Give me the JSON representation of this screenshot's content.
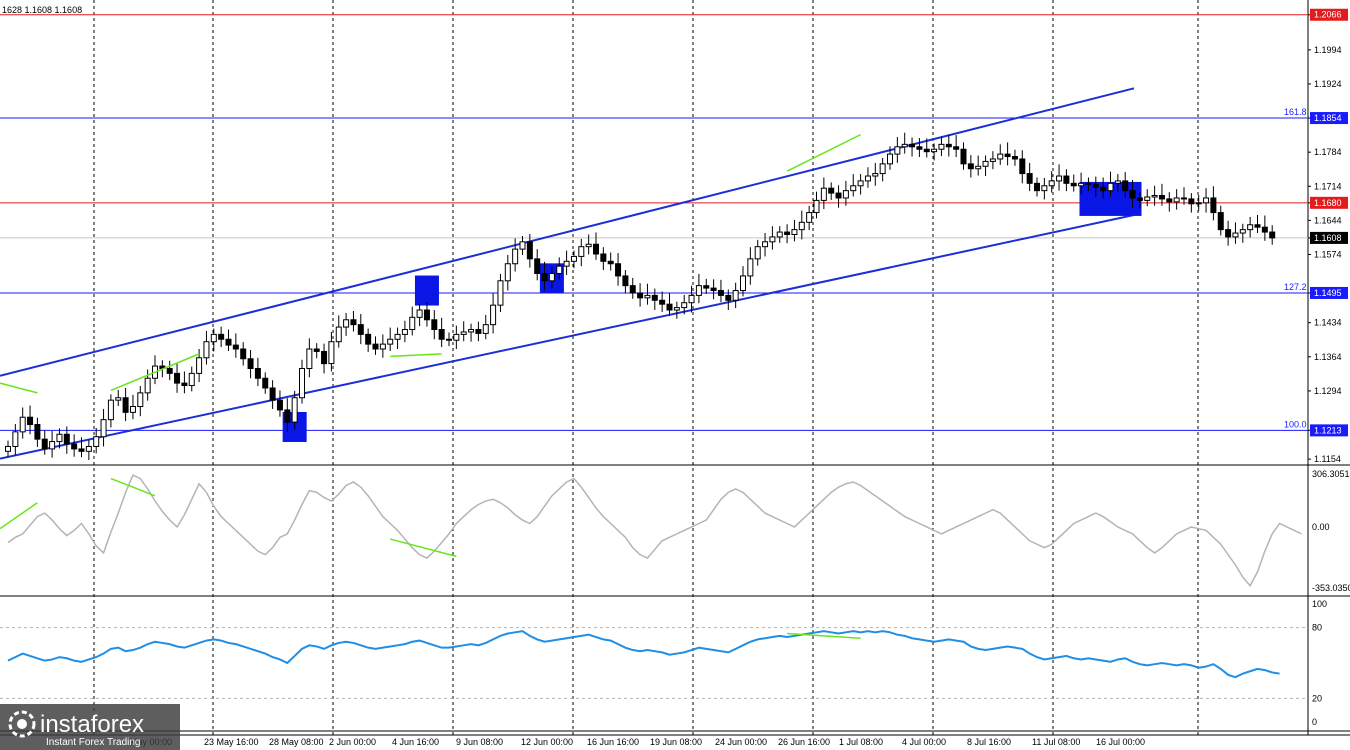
{
  "header": {
    "ohlc_text": "1628 1.1608 1.1608"
  },
  "colors": {
    "channel": "#1a2fd6",
    "zone": "#0a16e6",
    "red_level": "#e31b1b",
    "blue_level": "#1a1aff",
    "divergence": "#66e61a",
    "cci": "#b4b4b4",
    "rsi": "#1e8ee6",
    "grid": "#000000",
    "current_price": "#000000"
  },
  "chart_data": [
    {
      "type": "candlestick",
      "symbol_note": "EUR/USD 4H",
      "price_axis_ticks": [
        "1.2066",
        "1.1994",
        "1.1924",
        "1.1854",
        "1.1784",
        "1.1714",
        "1.1680",
        "1.1644",
        "1.1608",
        "1.1574",
        "1.1495",
        "1.1434",
        "1.1364",
        "1.1294",
        "1.1213",
        "1.1154"
      ],
      "ylim": [
        1.1144,
        1.2086
      ],
      "x_ticks": [
        "23 May 16:00",
        "28 May 08:00",
        "2 Jun 00:00",
        "4 Jun 16:00",
        "9 Jun 08:00",
        "12 Jun 00:00",
        "16 Jun 16:00",
        "19 Jun 08:00",
        "24 Jun 00:00",
        "26 Jun 16:00",
        "1 Jul 08:00",
        "4 Jul 00:00",
        "8 Jul 16:00",
        "11 Jul 08:00",
        "16 Jul 00:00"
      ],
      "x_tick_partial": "May 00:00",
      "levels": [
        {
          "price": 1.2066,
          "label": "1.2066",
          "kind": "red",
          "fib": ""
        },
        {
          "price": 1.1854,
          "label": "1.1854",
          "kind": "blue",
          "fib": "161.8"
        },
        {
          "price": 1.168,
          "label": "1.1680",
          "kind": "red",
          "fib": ""
        },
        {
          "price": 1.1495,
          "label": "1.1495",
          "kind": "blue",
          "fib": "127.2"
        },
        {
          "price": 1.1213,
          "label": "1.1213",
          "kind": "blue",
          "fib": "100.0"
        }
      ],
      "current_price": {
        "value": 1.1608,
        "label": "1.1608"
      },
      "closes": [
        1.118,
        1.121,
        1.124,
        1.1225,
        1.1195,
        1.1175,
        1.119,
        1.1205,
        1.1185,
        1.1175,
        1.117,
        1.118,
        1.12,
        1.1235,
        1.1275,
        1.128,
        1.125,
        1.1262,
        1.129,
        1.132,
        1.1345,
        1.134,
        1.133,
        1.131,
        1.1305,
        1.133,
        1.1362,
        1.1395,
        1.141,
        1.14,
        1.1388,
        1.138,
        1.136,
        1.134,
        1.132,
        1.13,
        1.1275,
        1.1255,
        1.123,
        1.128,
        1.134,
        1.138,
        1.1375,
        1.135,
        1.1395,
        1.1425,
        1.144,
        1.143,
        1.141,
        1.139,
        1.138,
        1.139,
        1.14,
        1.141,
        1.142,
        1.1445,
        1.146,
        1.144,
        1.142,
        1.14,
        1.1398,
        1.141,
        1.1415,
        1.142,
        1.1412,
        1.143,
        1.147,
        1.152,
        1.1555,
        1.1585,
        1.16,
        1.1565,
        1.1535,
        1.152,
        1.1535,
        1.155,
        1.156,
        1.157,
        1.159,
        1.1595,
        1.1575,
        1.156,
        1.1555,
        1.153,
        1.151,
        1.1495,
        1.1485,
        1.149,
        1.148,
        1.1472,
        1.146,
        1.1465,
        1.1475,
        1.149,
        1.151,
        1.1505,
        1.15,
        1.149,
        1.148,
        1.15,
        1.153,
        1.1565,
        1.159,
        1.16,
        1.161,
        1.162,
        1.1615,
        1.1625,
        1.164,
        1.166,
        1.1685,
        1.171,
        1.17,
        1.169,
        1.1705,
        1.1715,
        1.1725,
        1.1735,
        1.174,
        1.176,
        1.178,
        1.1795,
        1.18,
        1.1795,
        1.179,
        1.1785,
        1.179,
        1.18,
        1.1795,
        1.179,
        1.176,
        1.175,
        1.1755,
        1.1765,
        1.177,
        1.178,
        1.1775,
        1.177,
        1.174,
        1.172,
        1.1705,
        1.1715,
        1.1725,
        1.1735,
        1.172,
        1.1715,
        1.172,
        1.1718,
        1.1712,
        1.1705,
        1.172,
        1.1725,
        1.1705,
        1.169,
        1.1685,
        1.1692,
        1.1695,
        1.1688,
        1.1682,
        1.169,
        1.1688,
        1.1678,
        1.168,
        1.169,
        1.166,
        1.1625,
        1.161,
        1.1618,
        1.1625,
        1.1635,
        1.163,
        1.162,
        1.1608
      ],
      "channel": {
        "upper": [
          {
            "x": "start",
            "y": 1.1325
          },
          {
            "x": "16 Jul 00:00",
            "y": 1.1915
          }
        ],
        "lower": [
          {
            "x": "start",
            "y": 1.1155
          },
          {
            "x": "16 Jul 00:00",
            "y": 1.1655
          }
        ]
      },
      "zones": [
        {
          "center_index": 39,
          "price": 1.122
        },
        {
          "center_index": 57,
          "price": 1.15
        },
        {
          "center_index": 74,
          "price": 1.1525
        },
        {
          "center_index": 150,
          "price": 1.1688
        }
      ],
      "divergence_lines": [
        {
          "from": [
            -2,
            1.131
          ],
          "to": [
            4,
            1.129
          ]
        },
        {
          "from": [
            14,
            1.1295
          ],
          "to": [
            26,
            1.137
          ]
        },
        {
          "from": [
            52,
            1.1365
          ],
          "to": [
            59,
            1.137
          ]
        },
        {
          "from": [
            106,
            1.1745
          ],
          "to": [
            116,
            1.182
          ]
        }
      ]
    },
    {
      "type": "line",
      "indicator": "CCI",
      "ticks": [
        "306.3051",
        "0.00",
        "-353.0350"
      ],
      "ylim": [
        -353.035,
        306.3051
      ],
      "values": [
        -90,
        -60,
        -40,
        10,
        60,
        80,
        40,
        -10,
        -50,
        -20,
        20,
        -40,
        -110,
        -150,
        -30,
        80,
        200,
        300,
        280,
        220,
        150,
        90,
        40,
        0,
        70,
        160,
        250,
        200,
        120,
        60,
        20,
        -20,
        -60,
        -100,
        -140,
        -160,
        -120,
        -60,
        -40,
        40,
        130,
        210,
        200,
        170,
        150,
        190,
        240,
        260,
        230,
        180,
        120,
        60,
        20,
        -20,
        -70,
        -120,
        -160,
        -180,
        -140,
        -90,
        -40,
        20,
        60,
        100,
        130,
        150,
        160,
        140,
        110,
        70,
        40,
        20,
        60,
        120,
        180,
        220,
        260,
        280,
        230,
        170,
        110,
        60,
        20,
        -20,
        -60,
        -120,
        -160,
        -180,
        -130,
        -80,
        -60,
        -40,
        -20,
        0,
        20,
        40,
        100,
        160,
        200,
        220,
        200,
        160,
        120,
        80,
        60,
        40,
        20,
        0,
        40,
        80,
        120,
        160,
        200,
        230,
        250,
        260,
        240,
        210,
        180,
        150,
        120,
        90,
        60,
        40,
        20,
        0,
        -20,
        -40,
        -20,
        0,
        20,
        40,
        60,
        80,
        100,
        80,
        40,
        0,
        -40,
        -80,
        -100,
        -120,
        -100,
        -60,
        -20,
        20,
        40,
        60,
        80,
        60,
        30,
        0,
        -20,
        -40,
        -80,
        -120,
        -150,
        -120,
        -80,
        -40,
        -20,
        0,
        -10,
        -20,
        -60,
        -100,
        -160,
        -220,
        -290,
        -340,
        -260,
        -140,
        -40,
        20,
        0,
        -20,
        -40
      ],
      "divergence_lines": [
        {
          "from": [
            -2,
            -10
          ],
          "to": [
            4,
            140
          ]
        },
        {
          "from": [
            14,
            280
          ],
          "to": [
            20,
            180
          ]
        },
        {
          "from": [
            52,
            -70
          ],
          "to": [
            61,
            -170
          ]
        }
      ]
    },
    {
      "type": "line",
      "indicator": "RSI",
      "ticks": [
        "100",
        "80",
        "20",
        "0"
      ],
      "ylim": [
        0,
        100
      ],
      "levels": [
        80,
        20
      ],
      "values": [
        52,
        55,
        58,
        56,
        54,
        52,
        53,
        55,
        54,
        52,
        51,
        53,
        55,
        58,
        62,
        63,
        60,
        61,
        63,
        66,
        68,
        67,
        66,
        64,
        63,
        65,
        67,
        69,
        70,
        69,
        67,
        66,
        64,
        62,
        60,
        58,
        55,
        53,
        50,
        56,
        62,
        65,
        64,
        62,
        65,
        67,
        68,
        67,
        65,
        63,
        62,
        63,
        64,
        65,
        66,
        68,
        69,
        67,
        65,
        63,
        63,
        64,
        65,
        66,
        65,
        67,
        70,
        73,
        75,
        76,
        77,
        73,
        70,
        68,
        69,
        70,
        71,
        72,
        73,
        74,
        72,
        70,
        69,
        66,
        63,
        61,
        60,
        61,
        60,
        59,
        57,
        58,
        59,
        61,
        63,
        62,
        61,
        60,
        59,
        62,
        65,
        68,
        70,
        71,
        72,
        73,
        72,
        73,
        74,
        75,
        76,
        77,
        76,
        75,
        76,
        77,
        76,
        77,
        76,
        77,
        76,
        74,
        73,
        71,
        70,
        69,
        68,
        69,
        70,
        69,
        68,
        64,
        62,
        61,
        62,
        63,
        64,
        63,
        62,
        58,
        55,
        53,
        54,
        55,
        56,
        54,
        53,
        54,
        53,
        52,
        51,
        53,
        54,
        51,
        49,
        48,
        49,
        50,
        49,
        48,
        49,
        48,
        46,
        47,
        49,
        45,
        40,
        38,
        41,
        43,
        45,
        44,
        42,
        41
      ],
      "divergence_lines": [
        {
          "from": [
            106,
            75
          ],
          "to": [
            116,
            71
          ]
        }
      ]
    }
  ],
  "logo": {
    "brand": "instaforex",
    "tagline": "Instant Forex Trading"
  }
}
